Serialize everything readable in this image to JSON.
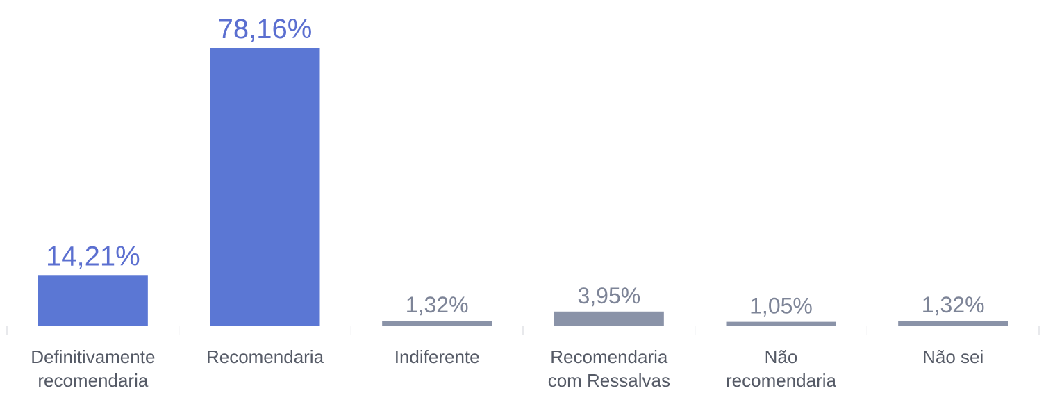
{
  "chart_data": {
    "type": "bar",
    "categories": [
      "Definitivamente recomendaria",
      "Recomendaria",
      "Indiferente",
      "Recomendaria com Ressalvas",
      "Não recomendaria",
      "Não sei"
    ],
    "values": [
      14.21,
      78.16,
      1.32,
      3.95,
      1.05,
      1.32
    ],
    "value_labels": [
      "14,21%",
      "78,16%",
      "1,32%",
      "3,95%",
      "1,05%",
      "1,32%"
    ],
    "colors": [
      "#5b77d4",
      "#5b77d4",
      "#8a93a8",
      "#8a93a8",
      "#8a93a8",
      "#8a93a8"
    ]
  }
}
